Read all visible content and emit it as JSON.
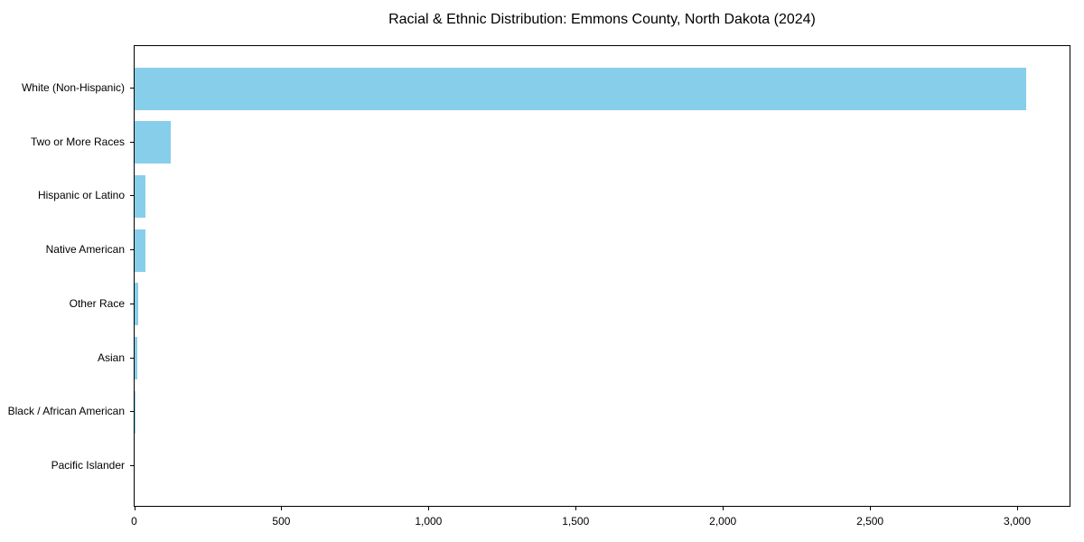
{
  "chart_data": {
    "type": "bar",
    "orientation": "horizontal",
    "title": "Racial & Ethnic Distribution: Emmons County, North Dakota (2024)",
    "xlabel": "",
    "ylabel": "",
    "categories": [
      "White (Non-Hispanic)",
      "Two or More Races",
      "Hispanic or Latino",
      "Native American",
      "Other Race",
      "Asian",
      "Black / African American",
      "Pacific Islander"
    ],
    "values": [
      3030,
      123,
      37,
      37,
      11,
      8,
      2,
      0
    ],
    "xlim": [
      0,
      3180
    ],
    "xticks": [
      "0",
      "500",
      "1,000",
      "1,500",
      "2,000",
      "2,500",
      "3,000"
    ],
    "grid": false,
    "color": "#87ceeb"
  }
}
